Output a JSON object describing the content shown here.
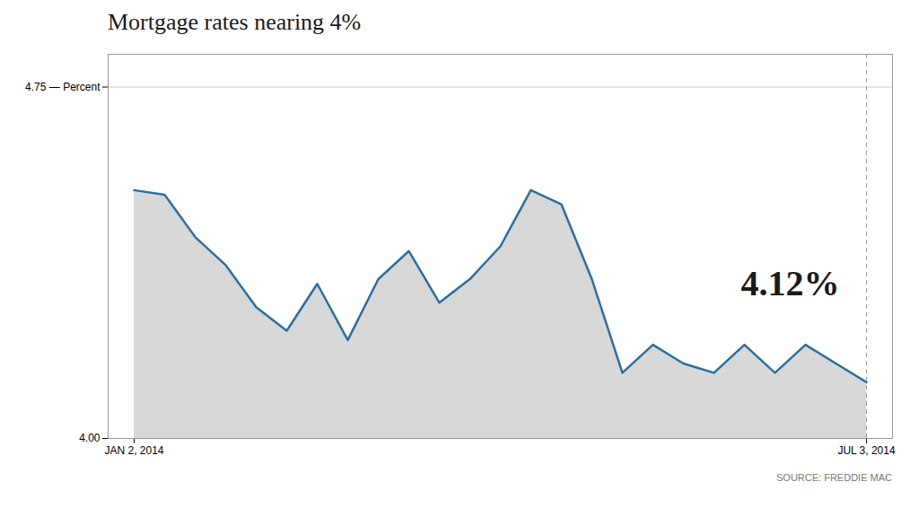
{
  "chart_data": {
    "type": "area",
    "title": "Mortgage rates nearing 4%",
    "source": "SOURCE: FREDDIE MAC",
    "annotation": "4.12%",
    "categories": [
      "JAN 2, 2014",
      null,
      null,
      null,
      null,
      null,
      null,
      null,
      null,
      null,
      null,
      null,
      null,
      null,
      null,
      null,
      null,
      null,
      null,
      null,
      null,
      null,
      null,
      null,
      "JUL 3, 2014"
    ],
    "values": [
      4.53,
      4.52,
      4.43,
      4.37,
      4.28,
      4.23,
      4.33,
      4.21,
      4.34,
      4.4,
      4.29,
      4.34,
      4.41,
      4.53,
      4.5,
      4.34,
      4.14,
      4.2,
      4.16,
      4.14,
      4.2,
      4.14,
      4.2,
      4.16,
      4.12
    ],
    "color": "#2e6e9e",
    "ylim": [
      4.0,
      4.82
    ],
    "yticks": [
      {
        "value": 4.0,
        "label": "4.00"
      },
      {
        "value": 4.75,
        "label": "4.75 — Percent"
      }
    ],
    "grid": true
  }
}
